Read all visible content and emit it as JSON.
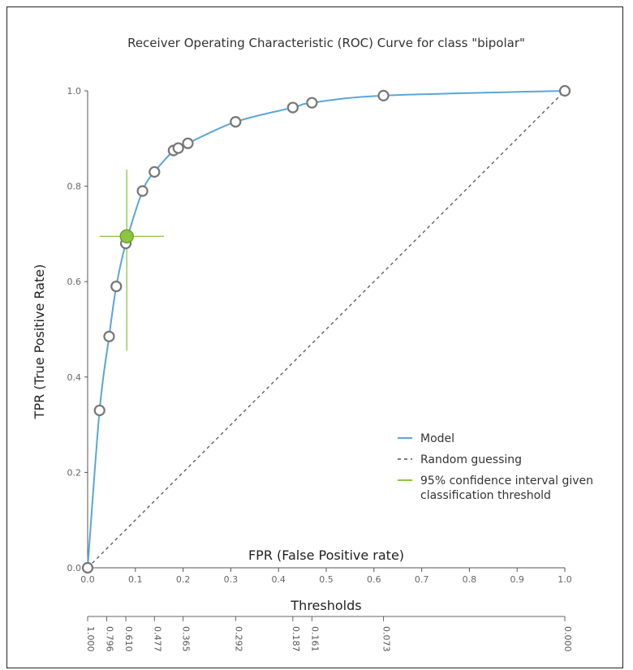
{
  "chart_data": {
    "type": "line",
    "title": "Receiver Operating Characteristic (ROC) Curve for class \"bipolar\"",
    "xlabel": "FPR (False Positive rate)",
    "ylabel": "TPR (True Positive Rate)",
    "xlim": [
      0,
      1
    ],
    "ylim": [
      0,
      1
    ],
    "x_ticks": [
      "0.0",
      "0.1",
      "0.2",
      "0.3",
      "0.4",
      "0.5",
      "0.6",
      "0.7",
      "0.8",
      "0.9",
      "1.0"
    ],
    "y_ticks": [
      "0.0",
      "0.2",
      "0.4",
      "0.6",
      "0.8",
      "1.0"
    ],
    "grid": false,
    "legend_position": "bottom-right",
    "series": [
      {
        "name": "Model",
        "color": "#5aa6d8",
        "points": [
          {
            "x": 0.0,
            "y": 0.0
          },
          {
            "x": 0.025,
            "y": 0.33
          },
          {
            "x": 0.045,
            "y": 0.485
          },
          {
            "x": 0.06,
            "y": 0.59
          },
          {
            "x": 0.08,
            "y": 0.68
          },
          {
            "x": 0.115,
            "y": 0.79
          },
          {
            "x": 0.14,
            "y": 0.83
          },
          {
            "x": 0.18,
            "y": 0.875
          },
          {
            "x": 0.19,
            "y": 0.88
          },
          {
            "x": 0.21,
            "y": 0.89
          },
          {
            "x": 0.31,
            "y": 0.935
          },
          {
            "x": 0.43,
            "y": 0.965
          },
          {
            "x": 0.47,
            "y": 0.975
          },
          {
            "x": 0.62,
            "y": 0.99
          },
          {
            "x": 1.0,
            "y": 1.0
          }
        ]
      },
      {
        "name": "Random guessing",
        "color": "#555555",
        "style": "dashed",
        "points": [
          {
            "x": 0.0,
            "y": 0.0
          },
          {
            "x": 1.0,
            "y": 1.0
          }
        ]
      }
    ],
    "confidence_interval": {
      "name": "95% confidence interval given classification threshold",
      "name_lines": [
        "95% confidence interval given",
        "classification threshold"
      ],
      "color": "#8cc63f",
      "x": 0.082,
      "y": 0.695,
      "x_range": [
        0.025,
        0.16
      ],
      "y_range": [
        0.455,
        0.835
      ]
    },
    "thresholds_label": "Thresholds",
    "thresholds": [
      {
        "label": "1.000",
        "fpr": 0.0
      },
      {
        "label": "0.796",
        "fpr": 0.04
      },
      {
        "label": "0.610",
        "fpr": 0.08
      },
      {
        "label": "0.477",
        "fpr": 0.14
      },
      {
        "label": "0.365",
        "fpr": 0.2
      },
      {
        "label": "0.292",
        "fpr": 0.31
      },
      {
        "label": "0.187",
        "fpr": 0.43
      },
      {
        "label": "0.161",
        "fpr": 0.47
      },
      {
        "label": "0.073",
        "fpr": 0.62
      },
      {
        "label": "0.000",
        "fpr": 1.0
      }
    ]
  }
}
